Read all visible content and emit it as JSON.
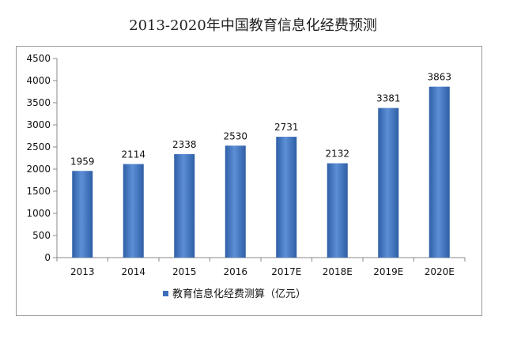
{
  "page": {
    "title": "2013-2020年中国教育信息化经费预测"
  },
  "colors": {
    "bar_light": "#5b8fd6",
    "bar_dark": "#2f5fa6",
    "axis": "#888888",
    "legend_swatch": "#3d6fbd"
  },
  "chart_data": {
    "type": "bar",
    "title": "2013-2020年中国教育信息化经费预测",
    "xlabel": "",
    "ylabel": "",
    "categories": [
      "2013",
      "2014",
      "2015",
      "2016",
      "2017E",
      "2018E",
      "2019E",
      "2020E"
    ],
    "series": [
      {
        "name": "教育信息化经费测算（亿元）",
        "values": [
          1959,
          2114,
          2338,
          2530,
          2731,
          2132,
          3381,
          3863
        ]
      }
    ],
    "ylim": [
      0,
      4500
    ],
    "yticks": [
      "0",
      "500",
      "1000",
      "1500",
      "2000",
      "2500",
      "3000",
      "3500",
      "4000",
      "4500"
    ],
    "data_labels": [
      "1959",
      "2114",
      "2338",
      "2530",
      "2731",
      "2132",
      "3381",
      "3863"
    ],
    "grid": false,
    "legend_position": "bottom"
  }
}
